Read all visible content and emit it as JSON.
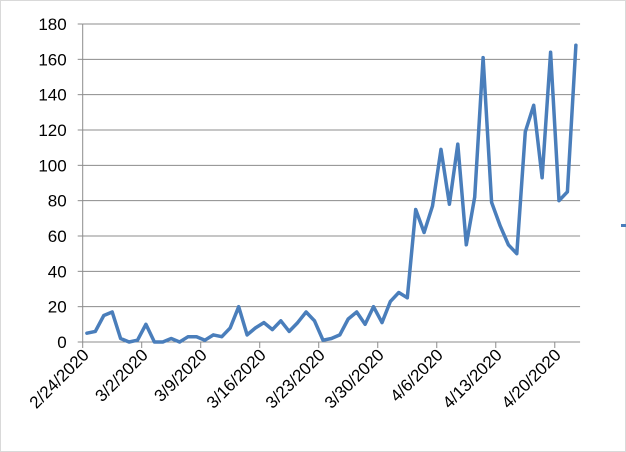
{
  "chart_data": {
    "type": "line",
    "title": "",
    "xlabel": "",
    "ylabel": "",
    "ylim": [
      0,
      180
    ],
    "yticks": [
      0,
      20,
      40,
      60,
      80,
      100,
      120,
      140,
      160,
      180
    ],
    "grid": true,
    "legend": "right (cut off)",
    "x_tick_labels": [
      "2/24/2020",
      "3/2/2020",
      "3/9/2020",
      "3/16/2020",
      "3/23/2020",
      "3/30/2020",
      "4/6/2020",
      "4/13/2020",
      "4/20/2020"
    ],
    "x": [
      "2/24/2020",
      "2/25/2020",
      "2/26/2020",
      "2/27/2020",
      "2/28/2020",
      "2/29/2020",
      "3/1/2020",
      "3/2/2020",
      "3/3/2020",
      "3/4/2020",
      "3/5/2020",
      "3/6/2020",
      "3/7/2020",
      "3/8/2020",
      "3/9/2020",
      "3/10/2020",
      "3/11/2020",
      "3/12/2020",
      "3/13/2020",
      "3/14/2020",
      "3/15/2020",
      "3/16/2020",
      "3/17/2020",
      "3/18/2020",
      "3/19/2020",
      "3/20/2020",
      "3/21/2020",
      "3/22/2020",
      "3/23/2020",
      "3/24/2020",
      "3/25/2020",
      "3/26/2020",
      "3/27/2020",
      "3/28/2020",
      "3/29/2020",
      "3/30/2020",
      "3/31/2020",
      "4/1/2020",
      "4/2/2020",
      "4/3/2020",
      "4/4/2020",
      "4/5/2020",
      "4/6/2020",
      "4/7/2020",
      "4/8/2020",
      "4/9/2020",
      "4/10/2020",
      "4/11/2020",
      "4/12/2020",
      "4/13/2020",
      "4/14/2020",
      "4/15/2020",
      "4/16/2020",
      "4/17/2020",
      "4/18/2020",
      "4/19/2020",
      "4/20/2020",
      "4/21/2020",
      "4/22/2020"
    ],
    "series": [
      {
        "color": "#4a7ebb",
        "values": [
          5,
          6,
          15,
          17,
          2,
          0,
          1,
          10,
          0,
          0,
          2,
          0,
          3,
          3,
          1,
          4,
          3,
          8,
          20,
          4,
          8,
          11,
          7,
          12,
          6,
          11,
          17,
          12,
          1,
          2,
          4,
          13,
          17,
          10,
          20,
          11,
          23,
          28,
          25,
          75,
          62,
          77,
          109,
          78,
          112,
          55,
          82,
          161,
          79,
          66,
          55,
          50,
          119,
          134,
          93,
          164,
          80,
          85,
          168
        ]
      }
    ]
  }
}
